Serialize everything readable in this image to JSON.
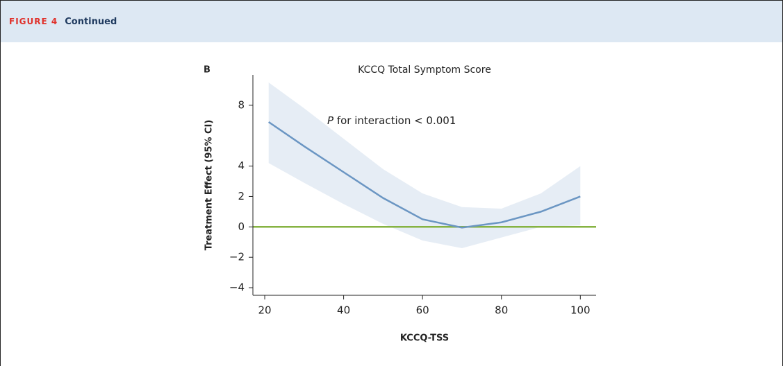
{
  "header": {
    "figure": "FIGURE 4",
    "subtitle": "Continued"
  },
  "chart_data": {
    "type": "line",
    "panel": "B",
    "title": "KCCQ Total Symptom Score",
    "x_label": "KCCQ-TSS",
    "y_label": "Treatment Effect (95% CI)",
    "annotation": {
      "italic": "P",
      "text": " for interaction < 0.001"
    },
    "x": [
      21,
      30,
      40,
      50,
      60,
      70,
      80,
      90,
      100
    ],
    "series": [
      {
        "color": "#6b96c3",
        "band_color": "#e6edf5",
        "values": [
          6.9,
          5.3,
          3.6,
          1.9,
          0.5,
          -0.05,
          0.3,
          1.0,
          2.0
        ],
        "upper": [
          9.5,
          7.8,
          5.8,
          3.8,
          2.2,
          1.3,
          1.2,
          2.2,
          4.0
        ],
        "lower": [
          4.2,
          2.9,
          1.5,
          0.2,
          -0.9,
          -1.4,
          -0.7,
          0.0,
          0.1
        ]
      }
    ],
    "reference_line": {
      "value": 0,
      "color": "#86b342"
    },
    "xlim": [
      17,
      104
    ],
    "ylim": [
      -4.5,
      10
    ],
    "xticks": [
      20,
      40,
      60,
      80,
      100
    ],
    "yticks": [
      {
        "value": -4,
        "label": "−4"
      },
      {
        "value": -2,
        "label": "−2"
      },
      0,
      2,
      4,
      8
    ]
  }
}
